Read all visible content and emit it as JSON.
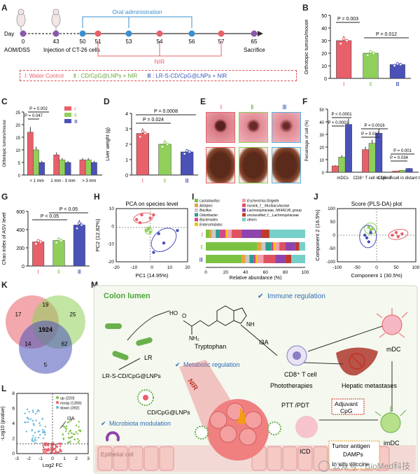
{
  "colors": {
    "g1": "#e8606a",
    "g2": "#8fcf5a",
    "g3": "#4a52b8",
    "pink": "#f8d7dc"
  },
  "panels": [
    "A",
    "B",
    "C",
    "D",
    "E",
    "F",
    "G",
    "H",
    "I",
    "J",
    "K",
    "L",
    "M"
  ],
  "panelA": {
    "day_label": "Day",
    "days": [
      "0",
      "43",
      "50",
      "51",
      "53",
      "54",
      "56",
      "57",
      "65"
    ],
    "aom_label": "AOM/DSS",
    "injection_label": "Injection of CT-26 cells",
    "oral_label": "Oral administration",
    "nir_label": "NIR",
    "sacrifice_label": "Sacrifice",
    "legend": {
      "g1": "Ⅰ: Water Control",
      "g2": "Ⅱ : CD/CpG@LNPs + NIR",
      "g3": "Ⅲ : LR-S-CD/CpG@LNPs + NIR"
    }
  },
  "chart_data": [
    {
      "id": "B",
      "type": "bar",
      "ylabel": "Orthotopic tumors/mouse",
      "categories": [
        "Ⅰ",
        "Ⅱ",
        "Ⅲ"
      ],
      "values": [
        30,
        20,
        11
      ],
      "ylim": [
        0,
        50
      ],
      "yticks": [
        "0",
        "10",
        "20",
        "30",
        "40",
        "50"
      ],
      "annotations": [
        "P = 0.003",
        "P = 0.012"
      ]
    },
    {
      "id": "C",
      "type": "bar",
      "ylabel": "Orthotopic tumors/mouse",
      "categories": [
        "< 1 mm",
        "1 mm - 3 mm",
        "> 3 mm"
      ],
      "series": [
        {
          "name": "Ⅰ",
          "values": [
            17,
            8,
            6
          ]
        },
        {
          "name": "Ⅱ",
          "values": [
            10,
            6,
            6
          ]
        },
        {
          "name": "Ⅲ",
          "values": [
            5,
            5,
            5
          ]
        }
      ],
      "ylim": [
        0,
        25
      ],
      "yticks": [
        "0",
        "5",
        "10",
        "15",
        "20",
        "25"
      ],
      "annotations": [
        "P = 0.002",
        "P = 0.047"
      ]
    },
    {
      "id": "D",
      "type": "bar",
      "ylabel": "Liver weight (g)",
      "categories": [
        "Ⅰ",
        "Ⅱ",
        "Ⅲ"
      ],
      "values": [
        2.7,
        2.0,
        1.5
      ],
      "ylim": [
        0,
        4
      ],
      "yticks": [
        "0",
        "1",
        "2",
        "3",
        "4"
      ],
      "annotations": [
        "P = 0.024",
        "P = 0.0008"
      ]
    },
    {
      "id": "F",
      "type": "bar",
      "ylabel": "Percentage of cell (%)",
      "categories": [
        "mDCs",
        "CD8⁺ T cell in spleen",
        "CD8⁺ T cell in distant tumor"
      ],
      "series": [
        {
          "name": "Ⅰ",
          "values": [
            5,
            18,
            1
          ]
        },
        {
          "name": "Ⅱ",
          "values": [
            12,
            23,
            1.5
          ]
        },
        {
          "name": "Ⅲ",
          "values": [
            38,
            31,
            3
          ]
        }
      ],
      "ylim": [
        0,
        50
      ],
      "yticks": [
        "0",
        "10",
        "20",
        "30",
        "40",
        "50"
      ],
      "annotations": [
        "P < 0.0001",
        "P < 0.0001",
        "P = 0.017",
        "P = 0.0016",
        "P = 0.001",
        "P = 0.034"
      ]
    },
    {
      "id": "G",
      "type": "bar",
      "ylabel": "Chao index of ASV level",
      "categories": [
        "Ⅰ",
        "Ⅱ",
        "Ⅲ"
      ],
      "values": [
        265,
        280,
        450
      ],
      "ylim": [
        0,
        600
      ],
      "yticks": [
        "0",
        "200",
        "400",
        "600"
      ],
      "annotations": [
        "P < 0.05",
        "P < 0.05"
      ]
    },
    {
      "id": "H",
      "type": "scatter",
      "title": "PCA on species level",
      "xlabel": "PC1 (14.95%)",
      "ylabel": "PC2 (12.82%)",
      "xticks": [
        "-20",
        "-10",
        "0",
        "10",
        "20"
      ],
      "yticks": [
        "10",
        "0",
        "-10",
        "-20"
      ],
      "series": [
        {
          "name": "Ⅰ",
          "x": [
            -8,
            -5,
            -6,
            2,
            0
          ],
          "y": [
            5,
            8,
            3,
            8,
            6
          ]
        },
        {
          "name": "Ⅱ",
          "x": [
            -2,
            -1,
            0
          ],
          "y": [
            -2,
            -1,
            -3
          ]
        },
        {
          "name": "Ⅲ",
          "x": [
            2,
            8,
            16,
            5
          ],
          "y": [
            -16,
            -10,
            -2,
            -4
          ]
        }
      ]
    },
    {
      "id": "I",
      "type": "bar",
      "orientation": "horizontal-stacked",
      "xlabel": "Relative abundance (%)",
      "xticks": [
        "0",
        "20",
        "40",
        "60",
        "80",
        "100"
      ],
      "categories": [
        "Ⅰ",
        "Ⅱ",
        "Ⅲ"
      ],
      "legend": [
        "Lactobacillus",
        "Alistipes",
        "Bacillus",
        "Odoribacter",
        "Bacteroides",
        "Enterorhabdus",
        "Escherichia-Shigella",
        "norank_f__Muribaculaceae",
        "Lachnospiraceae_NK4A136_group",
        "unclassified_f__Lachnospiraceae",
        "others"
      ],
      "legend_colors": [
        "#7cc242",
        "#e8a23a",
        "#c8c8c8",
        "#2a9d8f",
        "#d04a8a",
        "#f1c40f",
        "#f29fb0",
        "#e05260",
        "#8e44ad",
        "#c0392b",
        "#76d0c9"
      ]
    },
    {
      "id": "J",
      "type": "scatter",
      "title": "Score (PLS-DA) plot",
      "xlabel": "Component 1 (30.5%)",
      "ylabel": "Component 2 (16.5%)",
      "xticks": [
        "-100",
        "-50",
        "0",
        "50",
        "100"
      ],
      "yticks": [
        "100",
        "50",
        "0",
        "-50",
        "-100"
      ],
      "series": [
        {
          "name": "Ⅰ",
          "x": [
            40,
            55,
            65,
            50
          ],
          "y": [
            0,
            -5,
            5,
            10
          ]
        },
        {
          "name": "Ⅱ",
          "x": [
            -20,
            -15,
            -10
          ],
          "y": [
            30,
            20,
            25
          ]
        },
        {
          "name": "Ⅲ",
          "x": [
            -30,
            -25,
            -20,
            -15
          ],
          "y": [
            0,
            -10,
            -25,
            10
          ]
        }
      ]
    },
    {
      "id": "K",
      "type": "venn",
      "values": [
        "17",
        "19",
        "25",
        "1924",
        "14",
        "62",
        "5"
      ]
    },
    {
      "id": "L",
      "type": "scatter",
      "xlabel": "Log2 FC",
      "ylabel": "-Log10 (pvalue)",
      "xticks": [
        "-3",
        "-2",
        "-1",
        "0",
        "1",
        "2",
        "3"
      ],
      "yticks": [
        "0",
        "2",
        "4",
        "6",
        "8"
      ],
      "legend": [
        "up (220)",
        "nosig (1359)",
        "down (392)"
      ],
      "annotation": "I3A"
    }
  ],
  "panelE": {
    "groups": [
      "Ⅰ",
      "Ⅱ",
      "Ⅲ"
    ]
  },
  "panelM": {
    "colon_lumen": "Colon lumen",
    "immune_regulation": "Immune regulation",
    "metabolic_regulation": "Metabolic regulation",
    "microbiota_modulation": "Microbiota modulation",
    "tryptophan": "Tryptophan",
    "i3a": "I3A",
    "lr": "LR",
    "lr_lnps": "LR-S-CD/CpG@LNPs",
    "cd_lnps": "CD/CpG@LNPs",
    "nir": "NIR",
    "cd8": "CD8⁺ T cell",
    "hepatic": "Hepatic metastases",
    "mdc": "mDC",
    "imdc": "imDC",
    "phototherapies": "Phototherapies",
    "ptt": "PTT /PDT",
    "adjuvant": "Adjuvant",
    "cpg": "CpG",
    "icd": "ICD",
    "tumor_antigen": "Tumor antigen",
    "damps": "DAMPs",
    "in_situ": "In situ vaccine",
    "epithelial": "Epithelial cell",
    "oh": "HO",
    "o": "O",
    "nh2": "NH₂",
    "nh": "NH"
  },
  "watermark": "公众号 · BioMed科技"
}
